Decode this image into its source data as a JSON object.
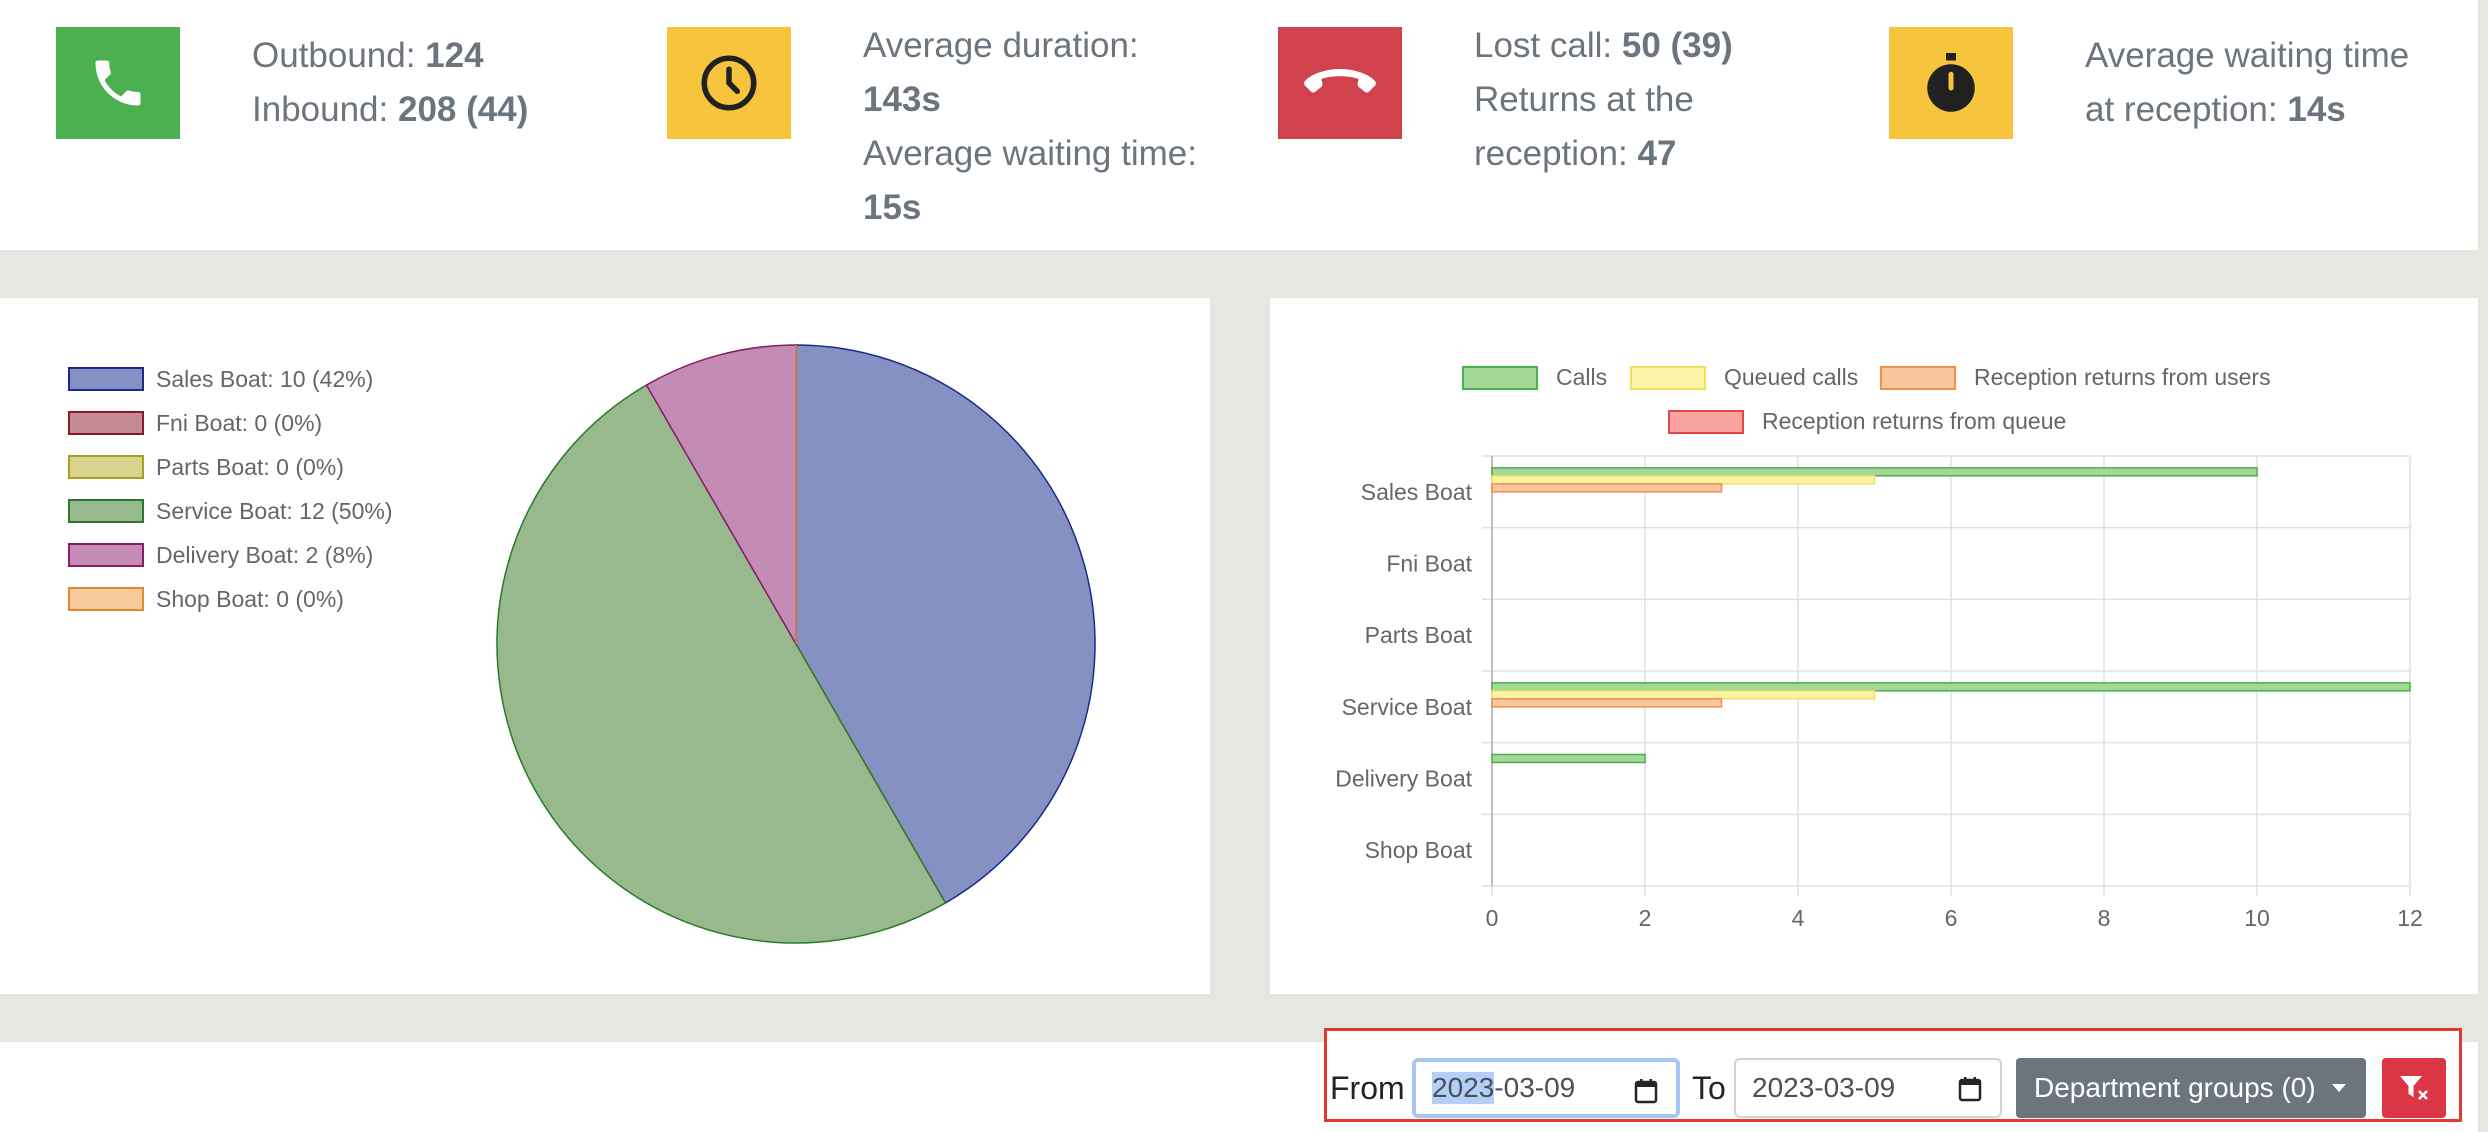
{
  "stats": {
    "outbound_label": "Outbound:",
    "outbound_value": "124",
    "inbound_label": "Inbound:",
    "inbound_value": "208 (44)",
    "avg_duration_label": "Average duration:",
    "avg_duration_value": "143s",
    "avg_wait_label": "Average waiting time:",
    "avg_wait_value": "15s",
    "lost_call_label": "Lost call:",
    "lost_call_value": "50 (39)",
    "returns_label_1": "Returns at the",
    "returns_label_2": "reception:",
    "returns_value": "47",
    "reception_wait_label_1": "Average waiting time",
    "reception_wait_label_2": "at reception:",
    "reception_wait_value": "14s"
  },
  "colors": {
    "green": "#4caf50",
    "yellow": "#f7c43e",
    "red": "#d0434d"
  },
  "icons": [
    "phone-icon",
    "clock-icon",
    "hangup-icon",
    "stopwatch-icon"
  ],
  "chart_data": [
    {
      "type": "pie",
      "categories": [
        "Sales Boat",
        "Fni Boat",
        "Parts Boat",
        "Service Boat",
        "Delivery Boat",
        "Shop Boat"
      ],
      "values": [
        10,
        0,
        0,
        12,
        2,
        0
      ],
      "legend": [
        "Sales Boat: 10 (42%)",
        "Fni Boat: 0 (0%)",
        "Parts Boat: 0 (0%)",
        "Service Boat: 12 (50%)",
        "Delivery Boat: 2 (8%)",
        "Shop Boat: 0 (0%)"
      ],
      "fill_colors": [
        "#8591c2",
        "#c48a94",
        "#d8d48e",
        "#97b98d",
        "#c48cb5",
        "#f8c99a"
      ],
      "border_colors": [
        "#1a2a8a",
        "#8a1a2a",
        "#a8a020",
        "#2a7a2a",
        "#8a1a6a",
        "#e08a30"
      ],
      "legend_position": "left"
    },
    {
      "type": "bar",
      "orientation": "horizontal",
      "categories": [
        "Sales Boat",
        "Fni Boat",
        "Parts Boat",
        "Service Boat",
        "Delivery Boat",
        "Shop Boat"
      ],
      "series": [
        {
          "name": "Calls",
          "values": [
            10,
            0,
            0,
            12,
            2,
            0
          ],
          "fill": "#a5d896",
          "border": "#4caf50"
        },
        {
          "name": "Queued calls",
          "values": [
            5,
            0,
            0,
            5,
            0,
            0
          ],
          "fill": "#fbf4a6",
          "border": "#f0e060"
        },
        {
          "name": "Reception returns from users",
          "values": [
            3,
            0,
            0,
            3,
            0,
            0
          ],
          "fill": "#f9c79b",
          "border": "#f0904a"
        },
        {
          "name": "Reception returns from queue",
          "values": [
            0,
            0,
            0,
            0,
            0,
            0
          ],
          "fill": "#f7a3a0",
          "border": "#e04848"
        }
      ],
      "x_ticks": [
        "0",
        "2",
        "4",
        "6",
        "8",
        "10",
        "12"
      ],
      "xlim": [
        0,
        12
      ],
      "grid": true,
      "legend_position": "top"
    }
  ],
  "filter": {
    "from_label": "From",
    "from_year": "2023",
    "from_rest": "-03-09",
    "to_label": "To",
    "to_value": "2023-03-09",
    "dept_label": "Department groups (0)"
  }
}
